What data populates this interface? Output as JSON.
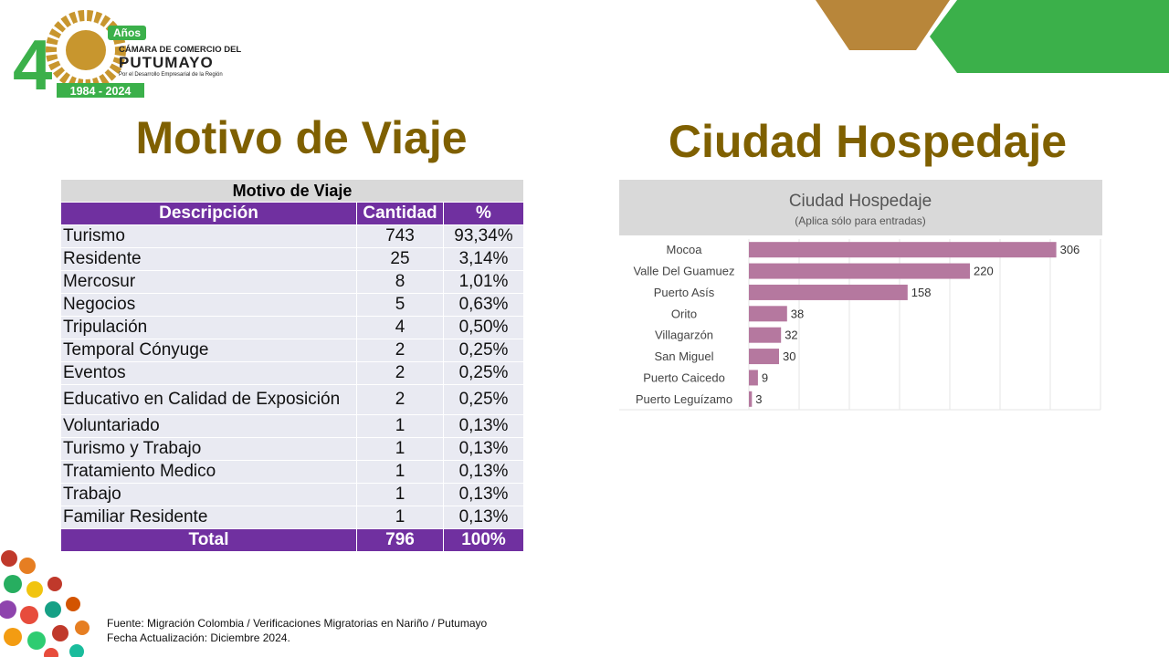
{
  "logo": {
    "digit": "4",
    "badge": "Años",
    "line1": "CÁMARA DE COMERCIO DEL",
    "line2": "PUTUMAYO",
    "tagline": "Por el Desarrollo Empresarial de la Región",
    "years": "1984 - 2024"
  },
  "left_title": "Motivo de Viaje",
  "right_title": "Ciudad Hospedaje",
  "table": {
    "caption": "Motivo de Viaje",
    "columns": [
      "Descripción",
      "Cantidad",
      "%"
    ],
    "rows": [
      [
        "Turismo",
        "743",
        "93,34%"
      ],
      [
        "Residente",
        "25",
        "3,14%"
      ],
      [
        "Mercosur",
        "8",
        "1,01%"
      ],
      [
        "Negocios",
        "5",
        "0,63%"
      ],
      [
        "Tripulación",
        "4",
        "0,50%"
      ],
      [
        "Temporal Cónyuge",
        "2",
        "0,25%"
      ],
      [
        "Eventos",
        "2",
        "0,25%"
      ],
      [
        "Educativo en Calidad de Exposición",
        "2",
        "0,25%"
      ],
      [
        "Voluntariado",
        "1",
        "0,13%"
      ],
      [
        "Turismo y Trabajo",
        "1",
        "0,13%"
      ],
      [
        "Tratamiento Medico",
        "1",
        "0,13%"
      ],
      [
        "Trabajo",
        "1",
        "0,13%"
      ],
      [
        "Familiar Residente",
        "1",
        "0,13%"
      ]
    ],
    "total": [
      "Total",
      "796",
      "100%"
    ]
  },
  "chart_data": {
    "type": "bar",
    "orientation": "horizontal",
    "title": "Ciudad Hospedaje",
    "subtitle": "(Aplica sólo para entradas)",
    "categories": [
      "Mocoa",
      "Valle Del Guamuez",
      "Puerto Asís",
      "Orito",
      "Villagarzón",
      "San Miguel",
      "Puerto Caicedo",
      "Puerto Leguízamo"
    ],
    "values": [
      306,
      220,
      158,
      38,
      32,
      30,
      9,
      3
    ],
    "color": "#b5789f",
    "xlim": [
      0,
      350
    ],
    "xticks": [
      0,
      50,
      100,
      150,
      200,
      250,
      300,
      350
    ],
    "grid": true
  },
  "footer": {
    "source": "Fuente: Migración Colombia / Verificaciones Migratorias en Nariño / Putumayo",
    "updated": "Fecha Actualización: Diciembre 2024."
  }
}
